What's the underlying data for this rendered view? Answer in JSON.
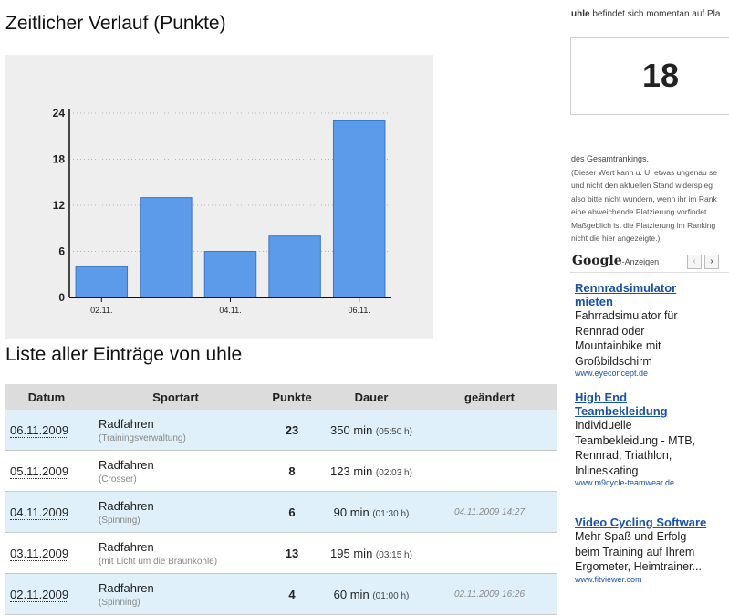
{
  "page": {
    "chart_title": "Zeitlicher Verlauf (Punkte)",
    "list_title": "Liste aller Einträge von uhle"
  },
  "chart_data": {
    "type": "bar",
    "categories": [
      "02.11.",
      "03.11.",
      "04.11.",
      "05.11.",
      "06.11."
    ],
    "tick_labels": [
      "02.11.",
      "",
      "04.11.",
      "",
      "06.11."
    ],
    "values": [
      4,
      13,
      6,
      8,
      23
    ],
    "ylim": [
      0,
      24
    ],
    "yticks": [
      0,
      6,
      12,
      18,
      24
    ],
    "grid": true,
    "bar_color": "#5b9bea",
    "background": "#eeeeee"
  },
  "table": {
    "headers": [
      "Datum",
      "Sportart",
      "Punkte",
      "Dauer",
      "geändert"
    ],
    "rows": [
      {
        "date": "06.11.2009",
        "sport": "Radfahren",
        "sub": "(Trainingsverwaltung)",
        "points": "23",
        "duration": "350 min",
        "duration_sub": "(05:50 h)",
        "changed": ""
      },
      {
        "date": "05.11.2009",
        "sport": "Radfahren",
        "sub": "(Crosser)",
        "points": "8",
        "duration": "123 min",
        "duration_sub": "(02:03 h)",
        "changed": ""
      },
      {
        "date": "04.11.2009",
        "sport": "Radfahren",
        "sub": "(Spinning)",
        "points": "6",
        "duration": "90 min",
        "duration_sub": "(01:30 h)",
        "changed": "04.11.2009 14:27"
      },
      {
        "date": "03.11.2009",
        "sport": "Radfahren",
        "sub": "(mit Licht um die Braunkohle)",
        "points": "13",
        "duration": "195 min",
        "duration_sub": "(03:15 h)",
        "changed": ""
      },
      {
        "date": "02.11.2009",
        "sport": "Radfahren",
        "sub": "(Spinning)",
        "points": "4",
        "duration": "60 min",
        "duration_sub": "(01:00 h)",
        "changed": "02.11.2009 16:26"
      }
    ]
  },
  "sidebar": {
    "head_user": "uhle",
    "head_text": " befindet sich momentan auf Pla",
    "rank": "18",
    "note_main": "des Gesamtrankings.",
    "note_lines": [
      "(Dieser Wert kann u. U. etwas ungenau se",
      "und nicht den aktuellen Stand widerspieg",
      "also bitte nicht wundern, wenn ihr im Rank",
      "eine abweichende Platzierung vorfindet.",
      "Maßgeblich ist die Platzierung im Ranking",
      "nicht die hier angezeigte.)"
    ]
  },
  "ads": {
    "logo": "Google",
    "logo_suffix": "-Anzeigen",
    "prev_icon": "‹",
    "next_icon": "›",
    "items": [
      {
        "title_1": "Rennradsimulator",
        "title_2": "mieten",
        "text": [
          "Fahrradsimulator für",
          "Rennrad oder",
          "Mountainbike mit",
          "Großbildschirm"
        ],
        "url": "www.eyeconcept.de"
      },
      {
        "title_1": "High End",
        "title_2": "Teambekleidung",
        "text": [
          "Individuelle",
          "Teambekleidung - MTB,",
          "Rennrad, Triathlon,",
          "Inlineskating"
        ],
        "url": "www.m9cycle-teamwear.de"
      },
      {
        "title_1": "Video Cycling Software",
        "title_2": "",
        "text": [
          "Mehr Spaß und Erfolg",
          "beim Training auf Ihrem",
          "Ergometer, Heimtrainer..."
        ],
        "url": "www.fitviewer.com"
      }
    ]
  }
}
